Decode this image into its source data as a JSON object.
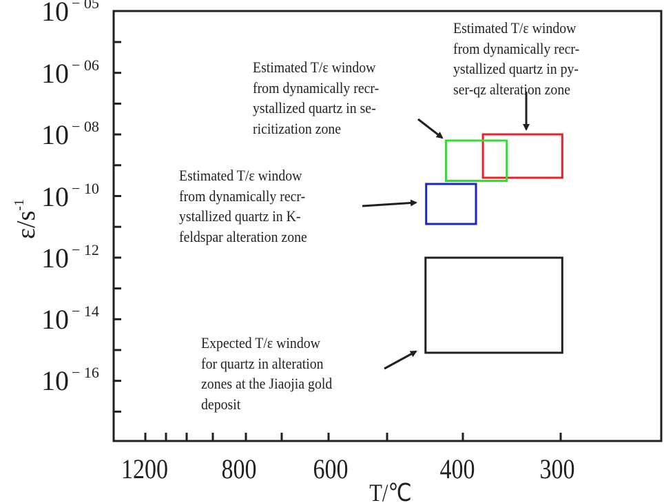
{
  "chart_data": {
    "type": "scatter",
    "subtype": "rectangle-windows",
    "xlabel": "T/℃",
    "ylabel": "ε/s",
    "ylabel_exponent": "-1",
    "x_ticks": [
      "1200",
      "800",
      "600",
      "400",
      "300"
    ],
    "y_ticks": [
      {
        "base": "10",
        "exp": "− 05",
        "value": -5
      },
      {
        "base": "10",
        "exp": "− 06",
        "value": -6
      },
      {
        "base": "10",
        "exp": "− 08",
        "value": -8
      },
      {
        "base": "10",
        "exp": "− 10",
        "value": -10
      },
      {
        "base": "10",
        "exp": "− 12",
        "value": -12
      },
      {
        "base": "10",
        "exp": "− 14",
        "value": -14
      },
      {
        "base": "10",
        "exp": "− 16",
        "value": -16
      }
    ],
    "grid": false,
    "windows": [
      {
        "name": "py-ser-qz alteration zone",
        "color": "#e8202a",
        "T_range": [
          377,
          297
        ],
        "log_strain_rate_range": [
          -8.0,
          -9.4
        ]
      },
      {
        "name": "sericitization zone",
        "color": "#2fe02f",
        "T_range": [
          422,
          353
        ],
        "log_strain_rate_range": [
          -8.2,
          -9.5
        ]
      },
      {
        "name": "K-feldspar alteration zone",
        "color": "#1c24c8",
        "T_range": [
          453,
          384
        ],
        "log_strain_rate_range": [
          -9.6,
          -10.9
        ]
      },
      {
        "name": "Expected window, Jiaojia gold deposit",
        "color": "#231f20",
        "T_range": [
          454,
          297
        ],
        "log_strain_rate_range": [
          -12.0,
          -15.1
        ]
      }
    ],
    "annotations": [
      {
        "lines": [
          "Estimated T/ε window",
          "from  dynamically recr-",
          "ystallized quartz in  py-",
          "ser-qz alteration zone"
        ]
      },
      {
        "lines": [
          "Estimated T/ε window",
          "from  dynamically recr-",
          "ystallized quartz in  se-",
          "ricitization zone"
        ]
      },
      {
        "lines": [
          "Estimated T/ε window",
          "from  dynamically recr-",
          "ystallized quartz in K-",
          "feldspar alteration zone"
        ]
      },
      {
        "lines": [
          "Expected T/ε window",
          "for  quartz in alteration",
          "zones at the Jiaojia gold",
          "deposit"
        ]
      }
    ]
  }
}
